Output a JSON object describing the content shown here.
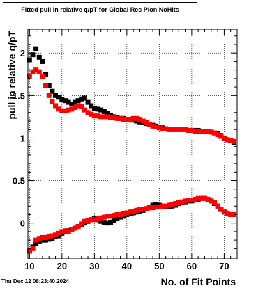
{
  "chart_data": {
    "type": "scatter",
    "title": "Fitted pull in relative q/pT for Global Rec Pion NoHits",
    "xlabel": "No. of Fit Points",
    "ylabel": "pull in relative q/pT",
    "xlim": [
      9.5,
      74
    ],
    "ylim": [
      -0.42,
      2.28
    ],
    "xticks": [
      10,
      20,
      30,
      40,
      50,
      60,
      70
    ],
    "xtick_labels": [
      "10",
      "20",
      "30",
      "40",
      "50",
      "60",
      "70"
    ],
    "yticks": [
      0,
      0.5,
      1,
      1.5,
      2
    ],
    "ytick_labels": [
      "0",
      "0.5",
      "1",
      "1.5",
      "2"
    ],
    "grid": true,
    "marker": "square",
    "series": [
      {
        "color": "#000000",
        "x": [
          10,
          11,
          12,
          13,
          14,
          15,
          16,
          17,
          18,
          19,
          20,
          21,
          22,
          23,
          24,
          25,
          26,
          27,
          28,
          29,
          30,
          31,
          32,
          33,
          34,
          35,
          36,
          37,
          38,
          39,
          40,
          41,
          42,
          43,
          44,
          45,
          46,
          47,
          48,
          49,
          50,
          51,
          52,
          53,
          54,
          55,
          56,
          57,
          58,
          59,
          60,
          61,
          62,
          63,
          64,
          65,
          66,
          67,
          68,
          69,
          70,
          71,
          72,
          73
        ],
        "y_upper": [
          1.92,
          1.98,
          2.05,
          1.95,
          1.9,
          1.75,
          1.62,
          1.55,
          1.5,
          1.48,
          1.45,
          1.44,
          1.42,
          1.4,
          1.42,
          1.44,
          1.46,
          1.47,
          1.42,
          1.38,
          1.35,
          1.34,
          1.33,
          1.31,
          1.29,
          1.27,
          1.25,
          1.24,
          1.23,
          1.23,
          1.22,
          1.22,
          1.21,
          1.2,
          1.19,
          1.18,
          1.17,
          1.16,
          1.15,
          1.14,
          1.13,
          1.12,
          1.11,
          1.1,
          1.1,
          1.1,
          1.1,
          1.1,
          1.1,
          1.09,
          1.09,
          1.09,
          1.09,
          1.08,
          1.08,
          1.08,
          1.07,
          1.06,
          1.05,
          1.03,
          1.0,
          0.98,
          0.97,
          0.95
        ],
        "y_lower": [
          -0.33,
          -0.28,
          -0.24,
          -0.22,
          -0.2,
          -0.2,
          -0.19,
          -0.18,
          -0.16,
          -0.15,
          -0.12,
          -0.1,
          -0.09,
          -0.08,
          -0.06,
          -0.04,
          -0.02,
          0.0,
          0.02,
          0.04,
          0.05,
          0.04,
          0.02,
          0.01,
          0.0,
          0.01,
          0.03,
          0.05,
          0.07,
          0.08,
          0.1,
          0.11,
          0.12,
          0.13,
          0.14,
          0.15,
          0.17,
          0.19,
          0.21,
          0.22,
          0.21,
          0.2,
          0.19,
          0.19,
          0.2,
          0.21,
          0.23,
          0.24,
          0.25,
          0.26,
          0.26,
          0.27,
          0.28,
          0.29,
          0.29,
          0.28,
          0.26,
          0.23,
          0.2,
          0.16,
          0.13,
          0.11,
          0.1,
          0.1
        ]
      },
      {
        "color": "#ff0000",
        "x": [
          10,
          11,
          12,
          13,
          14,
          15,
          16,
          17,
          18,
          19,
          20,
          21,
          22,
          23,
          24,
          25,
          26,
          27,
          28,
          29,
          30,
          31,
          32,
          33,
          34,
          35,
          36,
          37,
          38,
          39,
          40,
          41,
          42,
          43,
          44,
          45,
          46,
          47,
          48,
          49,
          50,
          51,
          52,
          53,
          54,
          55,
          56,
          57,
          58,
          59,
          60,
          61,
          62,
          63,
          64,
          65,
          66,
          67,
          68,
          69,
          70,
          71,
          72,
          73
        ],
        "y_upper": [
          1.73,
          1.78,
          1.8,
          1.78,
          1.72,
          1.62,
          1.5,
          1.43,
          1.38,
          1.34,
          1.32,
          1.32,
          1.33,
          1.34,
          1.36,
          1.38,
          1.37,
          1.33,
          1.3,
          1.28,
          1.26,
          1.26,
          1.25,
          1.25,
          1.25,
          1.24,
          1.24,
          1.23,
          1.23,
          1.22,
          1.22,
          1.22,
          1.23,
          1.23,
          1.22,
          1.2,
          1.18,
          1.16,
          1.14,
          1.13,
          1.12,
          1.11,
          1.11,
          1.1,
          1.1,
          1.1,
          1.1,
          1.1,
          1.1,
          1.09,
          1.09,
          1.08,
          1.08,
          1.08,
          1.08,
          1.08,
          1.07,
          1.06,
          1.04,
          1.02,
          1.0,
          0.98,
          0.97,
          0.96
        ],
        "y_lower": [
          -0.33,
          -0.3,
          -0.2,
          -0.18,
          -0.17,
          -0.17,
          -0.16,
          -0.15,
          -0.14,
          -0.12,
          -0.1,
          -0.09,
          -0.1,
          -0.08,
          -0.06,
          -0.04,
          -0.01,
          0.02,
          0.03,
          0.04,
          0.04,
          0.05,
          0.06,
          0.07,
          0.08,
          0.08,
          0.09,
          0.1,
          0.1,
          0.11,
          0.12,
          0.13,
          0.14,
          0.15,
          0.16,
          0.16,
          0.17,
          0.18,
          0.18,
          0.19,
          0.19,
          0.2,
          0.2,
          0.21,
          0.22,
          0.23,
          0.24,
          0.25,
          0.26,
          0.27,
          0.27,
          0.28,
          0.29,
          0.29,
          0.29,
          0.28,
          0.26,
          0.24,
          0.2,
          0.16,
          0.13,
          0.11,
          0.1,
          0.1
        ]
      }
    ]
  },
  "timestamp": "Thu Dec 12 08:23:40 2024"
}
